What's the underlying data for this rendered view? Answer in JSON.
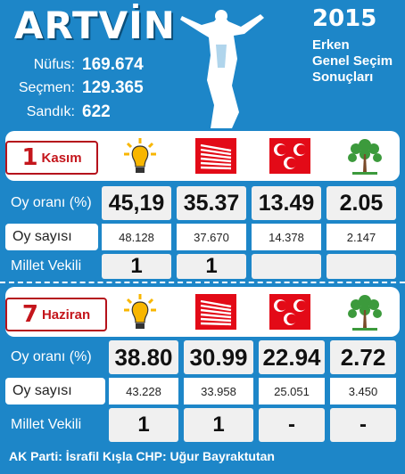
{
  "header": {
    "title": "ARTVİN",
    "year": "2015",
    "subtitle_lines": [
      "Erken",
      "Genel Seçim",
      "Sonuçları"
    ],
    "stats": [
      {
        "label": "Nüfus:",
        "value": "169.674"
      },
      {
        "label": "Seçmen:",
        "value": "129.365"
      },
      {
        "label": "Sandık:",
        "value": "622"
      }
    ]
  },
  "row_labels": {
    "oy_orani": "Oy oranı (%)",
    "oy_sayisi": "Oy sayısı",
    "millet_vekili": "Millet Vekili"
  },
  "parties": [
    "akp",
    "chp",
    "mhp",
    "hdp"
  ],
  "kasim": {
    "num": "1",
    "label": "Kasım",
    "pct": [
      "45,19",
      "35.37",
      "13.49",
      "2.05"
    ],
    "votes": [
      "48.128",
      "37.670",
      "14.378",
      "2.147"
    ],
    "mv": [
      "1",
      "1",
      "",
      ""
    ]
  },
  "haziran": {
    "num": "7",
    "label": "Haziran",
    "pct": [
      "38.80",
      "30.99",
      "22.94",
      "2.72"
    ],
    "votes": [
      "43.228",
      "33.958",
      "25.051",
      "3.450"
    ],
    "mv": [
      "1",
      "1",
      "-",
      "-"
    ]
  },
  "footer": "AK Parti: İsrafil Kışla CHP: Uğur Bayraktutan",
  "colors": {
    "panel_blue": "#1d86c8",
    "chp_red": "#e30a17",
    "akp_yellow": "#f8b600",
    "hdp_green": "#3c9a3c",
    "label_red": "#c4161c"
  }
}
